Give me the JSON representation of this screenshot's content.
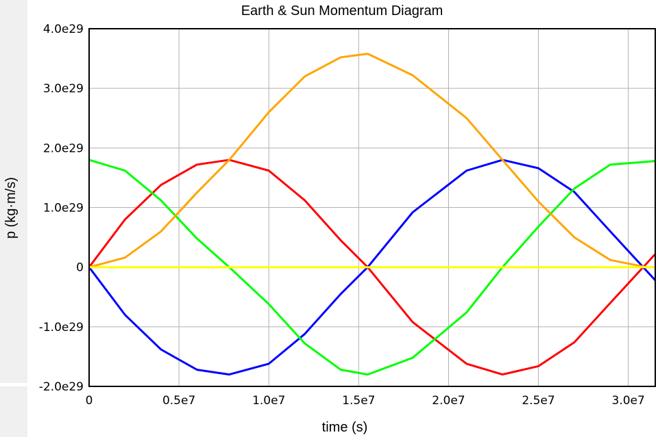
{
  "chart_data": {
    "type": "line",
    "title": "Earth & Sun Momentum Diagram",
    "xlabel": "time (s)",
    "ylabel": "p (kg·m/s)",
    "xlim": [
      0,
      31500000
    ],
    "ylim": [
      -2e+29,
      4e+29
    ],
    "grid": true,
    "x_ticks": [
      0,
      5000000,
      10000000,
      15000000,
      20000000,
      25000000,
      30000000
    ],
    "x_tick_labels": [
      "0",
      "0.5e7",
      "1.0e7",
      "1.5e7",
      "2.0e7",
      "2.5e7",
      "3.0e7"
    ],
    "y_ticks": [
      4e+29,
      3e+29,
      2e+29,
      1e+29,
      0,
      -1e+29,
      -2e+29
    ],
    "y_tick_labels": [
      "4.0e29",
      "3.0e29",
      "2.0e29",
      "1.0e29",
      "0",
      "-1.0e29",
      "-2.0e29"
    ],
    "series": [
      {
        "color": "#ff0000",
        "x": [
          0,
          2000000,
          4000000,
          6000000,
          7800000,
          10000000,
          12000000,
          14000000,
          15500000,
          18000000,
          21000000,
          23000000,
          25000000,
          27000000,
          29000000,
          31500000
        ],
        "y": [
          0,
          8e+28,
          1.38e+29,
          1.72e+29,
          1.8e+29,
          1.62e+29,
          1.12e+29,
          4.5e+28,
          0,
          -9.2e+28,
          -1.62e+29,
          -1.8e+29,
          -1.66e+29,
          -1.26e+29,
          -6e+28,
          2.2e+28
        ]
      },
      {
        "color": "#0000ff",
        "x": [
          0,
          2000000,
          4000000,
          6000000,
          7800000,
          10000000,
          12000000,
          14000000,
          15500000,
          18000000,
          21000000,
          23000000,
          25000000,
          27000000,
          29000000,
          31500000
        ],
        "y": [
          0,
          -8e+28,
          -1.38e+29,
          -1.72e+29,
          -1.8e+29,
          -1.62e+29,
          -1.12e+29,
          -4.5e+28,
          0,
          9.2e+28,
          1.62e+29,
          1.8e+29,
          1.66e+29,
          1.26e+29,
          6e+28,
          -2.2e+28
        ]
      },
      {
        "color": "#00ff00",
        "x": [
          0,
          2000000,
          4000000,
          6000000,
          7800000,
          10000000,
          12000000,
          14000000,
          15500000,
          18000000,
          21000000,
          23000000,
          25000000,
          27000000,
          29000000,
          31500000
        ],
        "y": [
          1.8e+29,
          1.62e+29,
          1.12e+29,
          4.8e+28,
          0,
          -6.2e+28,
          -1.28e+29,
          -1.72e+29,
          -1.8e+29,
          -1.52e+29,
          -7.6e+28,
          0,
          6.8e+28,
          1.32e+29,
          1.72e+29,
          1.78e+29
        ]
      },
      {
        "color": "#ffa500",
        "x": [
          0,
          2000000,
          4000000,
          6000000,
          7800000,
          10000000,
          12000000,
          14000000,
          15500000,
          18000000,
          21000000,
          23000000,
          25000000,
          27000000,
          29000000,
          31000000,
          31500000
        ],
        "y": [
          0,
          1.6e+28,
          6e+28,
          1.25e+29,
          1.8e+29,
          2.6e+29,
          3.2e+29,
          3.52e+29,
          3.58e+29,
          3.22e+29,
          2.5e+29,
          1.8e+29,
          1.1e+29,
          5e+28,
          1.2e+28,
          0,
          0
        ]
      },
      {
        "color": "#ffff00",
        "x": [
          0,
          31500000
        ],
        "y": [
          0,
          0
        ]
      }
    ]
  }
}
